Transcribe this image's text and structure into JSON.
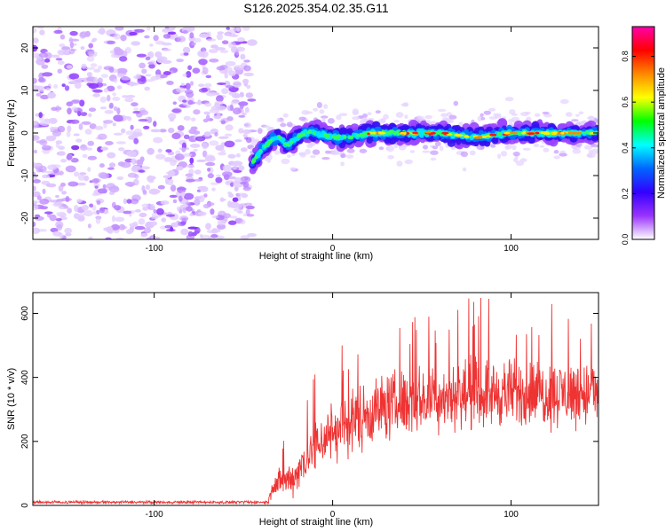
{
  "figure_title": "S126.2025.354.02.35.G11",
  "chart_data": [
    {
      "type": "heatmap",
      "name": "spectrogram",
      "xlabel": "Height of straight line (km)",
      "ylabel": "Frequency (Hz)",
      "xlim": [
        -168,
        149
      ],
      "ylim": [
        -25,
        25
      ],
      "xticks": [
        -100,
        0,
        100
      ],
      "xtick_labels": [
        "-100",
        "0",
        "100"
      ],
      "yticks": [
        -20,
        -10,
        0,
        10,
        20
      ],
      "ytick_labels": [
        "-20",
        "-10",
        "0",
        "10",
        "20"
      ],
      "noise_region_x": [
        -168,
        -45
      ],
      "signal_trace": {
        "x": [
          -45,
          -40,
          -35,
          -30,
          -25,
          -20,
          -15,
          -10,
          0,
          10,
          20,
          40,
          60,
          80,
          100,
          120,
          149
        ],
        "y": [
          -7,
          -4,
          -2,
          -1,
          -3,
          -1,
          0,
          0,
          -1,
          -1,
          0,
          0,
          0,
          -1,
          0,
          0,
          0
        ]
      },
      "colorbar": {
        "label": "Normalized spectral amplitude",
        "range": [
          0.0,
          0.93
        ],
        "ticks": [
          0.0,
          0.2,
          0.4,
          0.6,
          0.8
        ],
        "tick_labels": [
          "0.0",
          "0.2",
          "0.4",
          "0.6",
          "0.8"
        ],
        "colors": [
          "#ffffff",
          "#9933ff",
          "#3300ff",
          "#0066ff",
          "#00ffff",
          "#00ff00",
          "#ffff00",
          "#ff8800",
          "#ff0000",
          "#ff00aa"
        ]
      }
    },
    {
      "type": "line",
      "name": "snr",
      "xlabel": "Height of straight line (km)",
      "ylabel": "SNR (10 * v/v)",
      "xlim": [
        -168,
        149
      ],
      "ylim": [
        0,
        665
      ],
      "xticks": [
        -100,
        0,
        100
      ],
      "xtick_labels": [
        "-100",
        "0",
        "100"
      ],
      "yticks": [
        0,
        200,
        400,
        600
      ],
      "ytick_labels": [
        "0",
        "200",
        "400",
        "600"
      ],
      "color": "#ee3333",
      "envelope": {
        "x": [
          -168,
          -36,
          -34,
          -30,
          -25,
          -20,
          -15,
          -10,
          -5,
          0,
          10,
          20,
          30,
          40,
          60,
          80,
          100,
          120,
          149
        ],
        "mean": [
          10,
          10,
          60,
          70,
          80,
          100,
          150,
          180,
          210,
          230,
          260,
          290,
          310,
          320,
          340,
          350,
          350,
          350,
          350
        ],
        "spread": [
          6,
          6,
          50,
          60,
          70,
          80,
          100,
          110,
          120,
          130,
          140,
          140,
          140,
          140,
          140,
          140,
          140,
          140,
          140
        ]
      },
      "max_value": 660
    }
  ]
}
